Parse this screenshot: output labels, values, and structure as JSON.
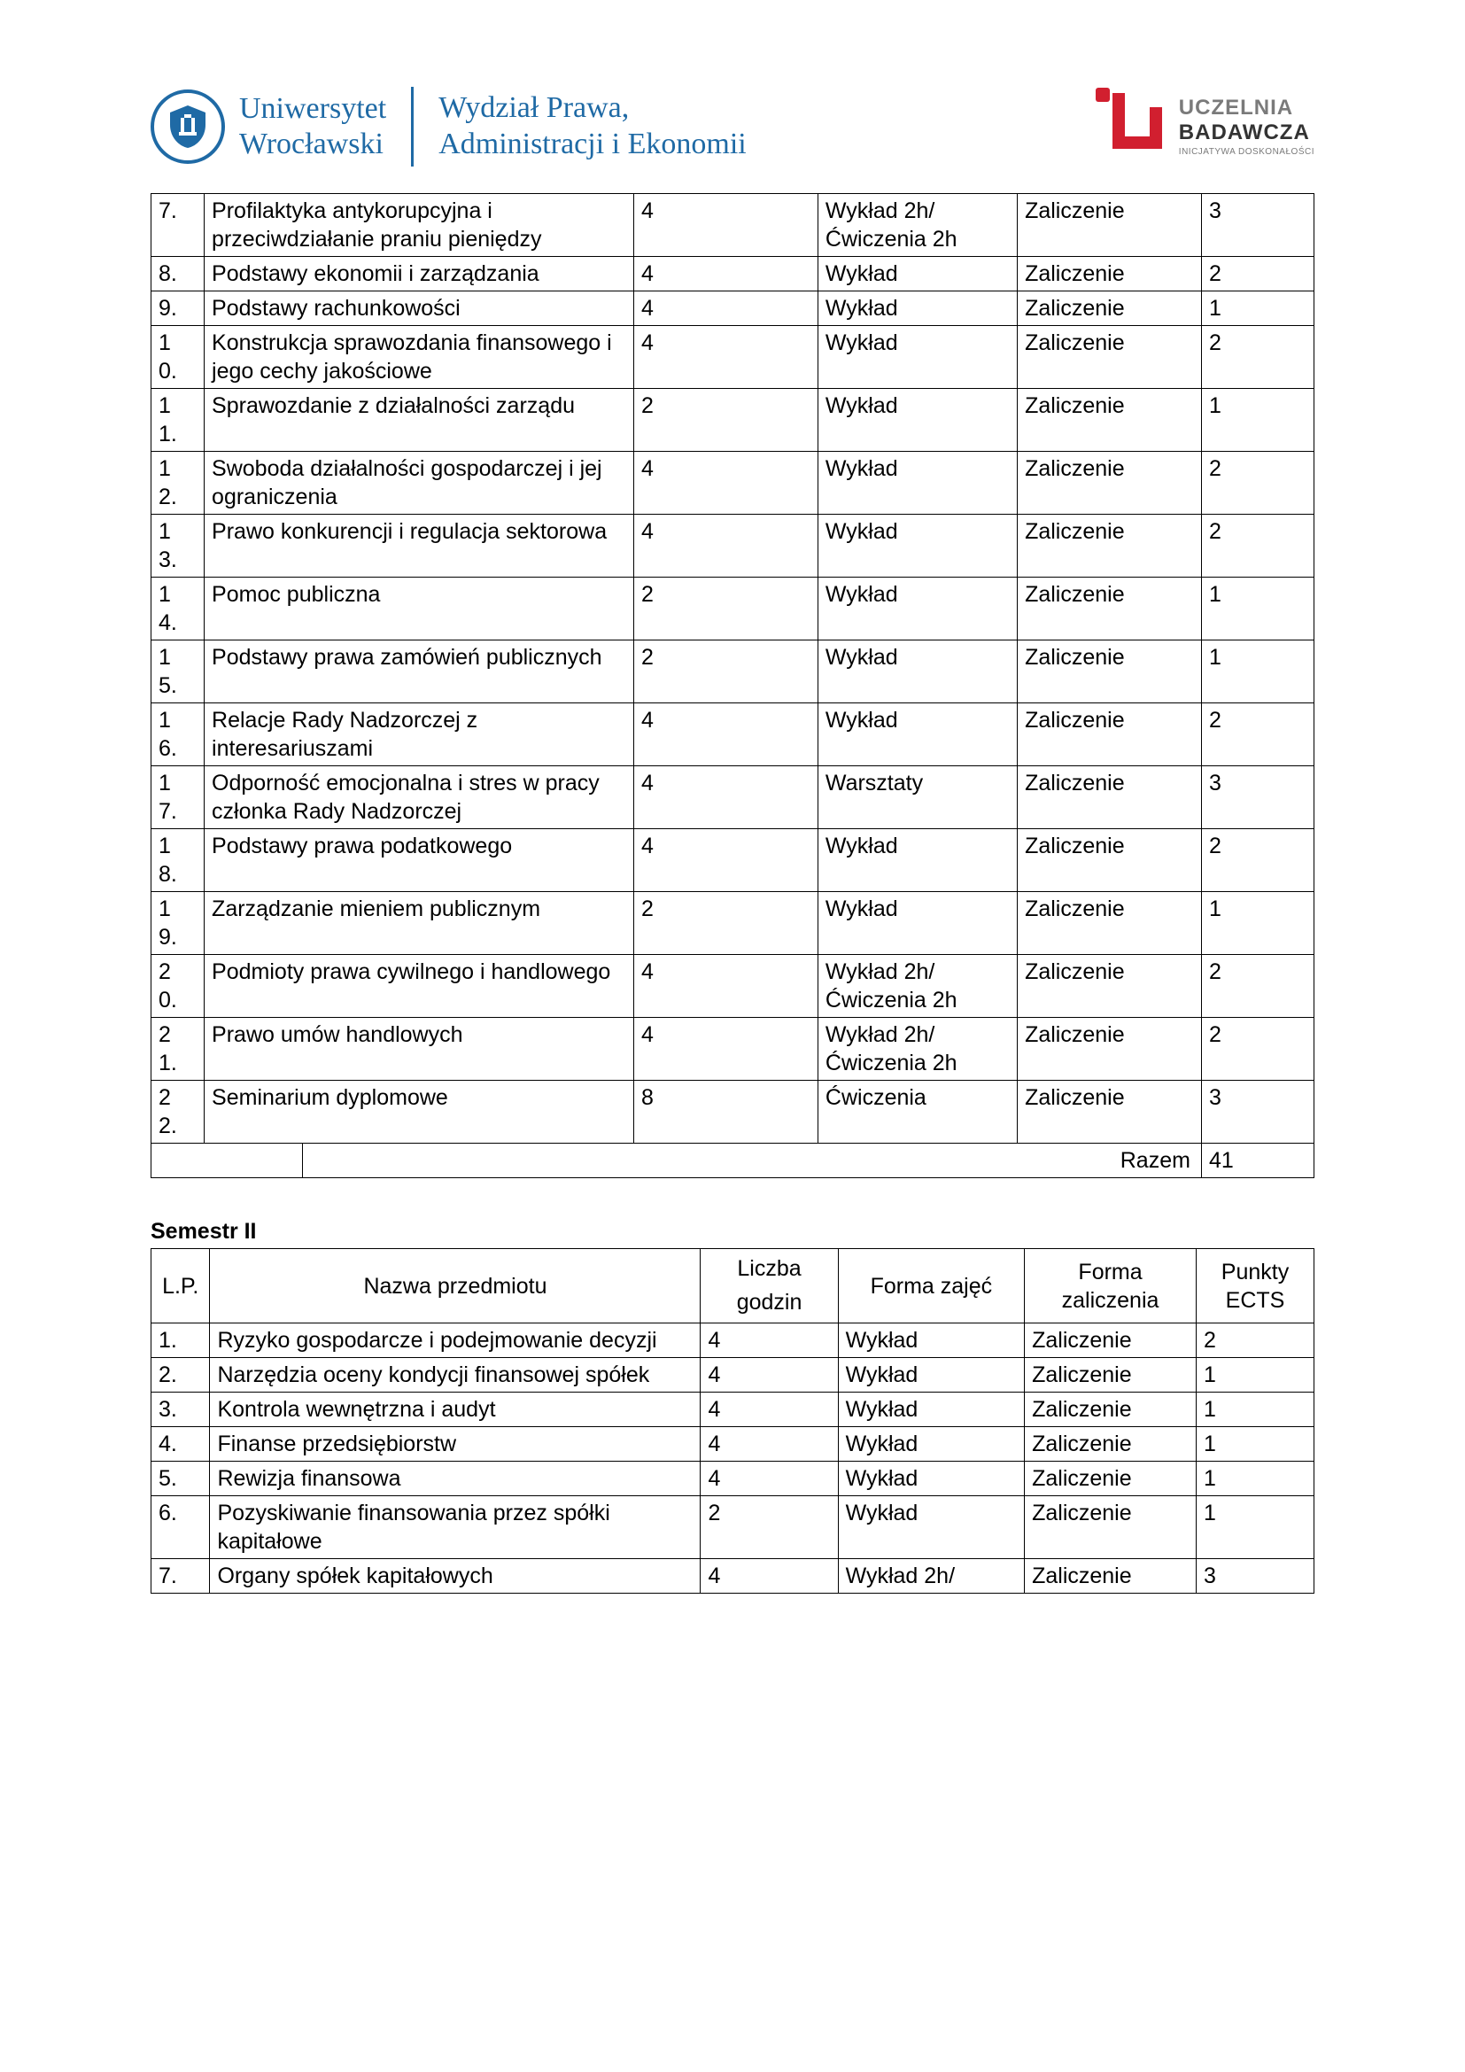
{
  "header": {
    "uni_line1": "Uniwersytet",
    "uni_line2": "Wrocławski",
    "dept_line1": "Wydział Prawa,",
    "dept_line2": "Administracji i Ekonomii",
    "ub_line1": "UCZELNIA",
    "ub_line2": "BADAWCZA",
    "ub_sub": "INICJATYWA DOSKONAŁOŚCI",
    "colors": {
      "blue": "#1f6aa5",
      "red": "#d11f2f",
      "gray": "#7a7a7a",
      "dark": "#333333"
    }
  },
  "table1": {
    "rows": [
      {
        "lp": "7.",
        "name": "Profilaktyka antykorupcyjna i przeciwdziałanie praniu pieniędzy",
        "hours": "4",
        "form": "Wykład 2h/Ćwiczenia 2h",
        "zal": "Zaliczenie",
        "ects": "3"
      },
      {
        "lp": "8.",
        "name": "Podstawy ekonomii i zarządzania",
        "hours": "4",
        "form": "Wykład",
        "zal": "Zaliczenie",
        "ects": "2"
      },
      {
        "lp": "9.",
        "name": "Podstawy rachunkowości",
        "hours": "4",
        "form": "Wykład",
        "zal": "Zaliczenie",
        "ects": "1"
      },
      {
        "lp": "10.",
        "name": "Konstrukcja sprawozdania finansowego i jego cechy jakościowe",
        "hours": "4",
        "form": "Wykład",
        "zal": "Zaliczenie",
        "ects": "2"
      },
      {
        "lp": "11.",
        "name": "Sprawozdanie z działalności zarządu",
        "hours": "2",
        "form": "Wykład",
        "zal": "Zaliczenie",
        "ects": "1"
      },
      {
        "lp": "12.",
        "name": "Swoboda działalności gospodarczej i jej ograniczenia",
        "hours": "4",
        "form": "Wykład",
        "zal": "Zaliczenie",
        "ects": "2"
      },
      {
        "lp": "13.",
        "name": "Prawo konkurencji i regulacja sektorowa",
        "hours": "4",
        "form": "Wykład",
        "zal": "Zaliczenie",
        "ects": "2"
      },
      {
        "lp": "14.",
        "name": "Pomoc publiczna",
        "hours": "2",
        "form": "Wykład",
        "zal": "Zaliczenie",
        "ects": "1"
      },
      {
        "lp": "15.",
        "name": "Podstawy prawa zamówień publicznych",
        "hours": "2",
        "form": "Wykład",
        "zal": "Zaliczenie",
        "ects": "1"
      },
      {
        "lp": "16.",
        "name": "Relacje Rady Nadzorczej z interesariuszami",
        "hours": "4",
        "form": "Wykład",
        "zal": "Zaliczenie",
        "ects": "2"
      },
      {
        "lp": "17.",
        "name": "Odporność emocjonalna i stres w pracy członka Rady Nadzorczej",
        "hours": "4",
        "form": "Warsztaty",
        "zal": "Zaliczenie",
        "ects": "3"
      },
      {
        "lp": "18.",
        "name": "Podstawy prawa podatkowego",
        "hours": "4",
        "form": "Wykład",
        "zal": "Zaliczenie",
        "ects": "2"
      },
      {
        "lp": "19.",
        "name": "Zarządzanie mieniem publicznym",
        "hours": "2",
        "form": "Wykład",
        "zal": "Zaliczenie",
        "ects": "1"
      },
      {
        "lp": "20.",
        "name": "Podmioty prawa cywilnego i handlowego",
        "hours": "4",
        "form": "Wykład 2h/Ćwiczenia 2h",
        "zal": "Zaliczenie",
        "ects": "2"
      },
      {
        "lp": "21.",
        "name": "Prawo umów handlowych",
        "hours": "4",
        "form": "Wykład 2h/Ćwiczenia 2h",
        "zal": "Zaliczenie",
        "ects": "2"
      },
      {
        "lp": "22.",
        "name": "Seminarium dyplomowe",
        "hours": "8",
        "form": "Ćwiczenia",
        "zal": "Zaliczenie",
        "ects": "3"
      }
    ],
    "razem_label": "Razem",
    "razem_value": "41"
  },
  "section2_title": "Semestr II",
  "table2": {
    "headers": {
      "lp": "L.P.",
      "name": "Nazwa przedmiotu",
      "hours": "Liczba godzin",
      "form": "Forma zajęć",
      "zal": "Forma zaliczenia",
      "ects": "Punkty ECTS"
    },
    "rows": [
      {
        "lp": "1.",
        "name": "Ryzyko gospodarcze i podejmowanie decyzji",
        "hours": "4",
        "form": "Wykład",
        "zal": "Zaliczenie",
        "ects": "2"
      },
      {
        "lp": "2.",
        "name": "Narzędzia oceny kondycji finansowej spółek",
        "hours": "4",
        "form": "Wykład",
        "zal": "Zaliczenie",
        "ects": "1"
      },
      {
        "lp": "3.",
        "name": "Kontrola wewnętrzna i audyt",
        "hours": "4",
        "form": "Wykład",
        "zal": "Zaliczenie",
        "ects": "1"
      },
      {
        "lp": "4.",
        "name": "Finanse przedsiębiorstw",
        "hours": "4",
        "form": "Wykład",
        "zal": "Zaliczenie",
        "ects": "1"
      },
      {
        "lp": "5.",
        "name": "Rewizja finansowa",
        "hours": "4",
        "form": "Wykład",
        "zal": "Zaliczenie",
        "ects": "1"
      },
      {
        "lp": "6.",
        "name": "Pozyskiwanie finansowania przez spółki kapitałowe",
        "hours": "2",
        "form": "Wykład",
        "zal": "Zaliczenie",
        "ects": "1"
      },
      {
        "lp": "7.",
        "name": "Organy spółek kapitałowych",
        "hours": "4",
        "form": "Wykład 2h/",
        "zal": "Zaliczenie",
        "ects": "3"
      }
    ]
  }
}
